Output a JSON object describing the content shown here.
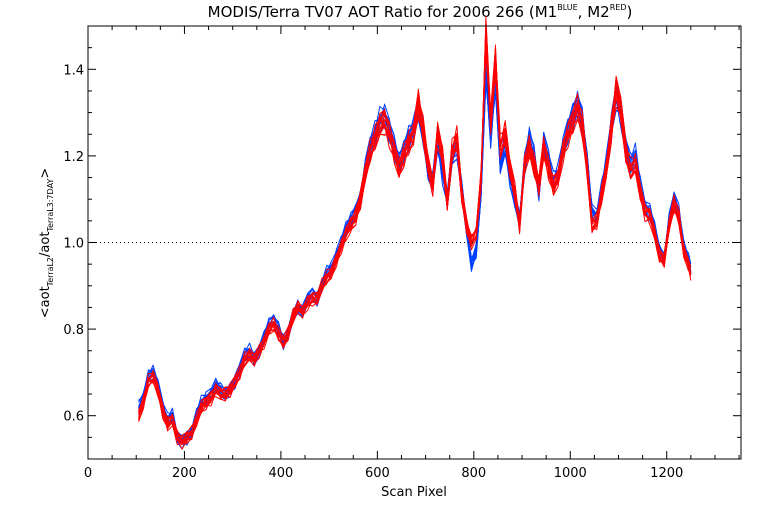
{
  "chart_data": {
    "type": "line",
    "title": {
      "main": "MODIS/Terra TV07 AOT Ratio for 2006 266 (M1",
      "sup1": "BLUE",
      "mid": ", M2",
      "sup2": "RED",
      "end": ")"
    },
    "xlabel": "Scan Pixel",
    "ylabel": {
      "open": "<aot",
      "sub1": "TerraL2",
      "mid": "/aot",
      "sub2": "TerraL3:7DAY",
      "close": ">"
    },
    "xlim": [
      0,
      1354
    ],
    "ylim": [
      0.5,
      1.5
    ],
    "x_ticks": [
      0,
      200,
      400,
      600,
      800,
      1000,
      1200
    ],
    "x_tick_labels": [
      "0",
      "200",
      "400",
      "600",
      "800",
      "1000",
      "1200"
    ],
    "y_ticks": [
      0.6,
      0.8,
      1.0,
      1.2,
      1.4
    ],
    "y_tick_labels": [
      "0.6",
      "0.8",
      "1.0",
      "1.2",
      "1.4"
    ],
    "reference_line": {
      "y": 1.0,
      "style": "dotted"
    },
    "grid": false,
    "series": [
      {
        "color": "#0040ff",
        "member_lines": 20,
        "x": [
          105,
          115,
          125,
          135,
          145,
          155,
          165,
          175,
          185,
          195,
          205,
          215,
          225,
          235,
          245,
          255,
          265,
          275,
          285,
          295,
          305,
          315,
          325,
          335,
          345,
          355,
          365,
          375,
          385,
          395,
          405,
          415,
          425,
          435,
          445,
          455,
          465,
          475,
          485,
          495,
          505,
          515,
          525,
          535,
          545,
          555,
          565,
          575,
          585,
          595,
          605,
          615,
          625,
          635,
          645,
          655,
          665,
          675,
          685,
          695,
          705,
          715,
          725,
          735,
          745,
          755,
          765,
          775,
          785,
          795,
          805,
          815,
          825,
          835,
          845,
          855,
          865,
          875,
          885,
          895,
          905,
          915,
          925,
          935,
          945,
          955,
          965,
          975,
          985,
          995,
          1005,
          1015,
          1025,
          1035,
          1045,
          1055,
          1065,
          1075,
          1085,
          1095,
          1105,
          1115,
          1125,
          1135,
          1145,
          1155,
          1165,
          1175,
          1185,
          1195,
          1205,
          1215,
          1225,
          1235,
          1245,
          1250
        ],
        "values": [
          0.62,
          0.64,
          0.69,
          0.7,
          0.67,
          0.62,
          0.59,
          0.6,
          0.55,
          0.54,
          0.55,
          0.56,
          0.6,
          0.63,
          0.64,
          0.65,
          0.67,
          0.66,
          0.65,
          0.66,
          0.68,
          0.71,
          0.74,
          0.75,
          0.73,
          0.75,
          0.78,
          0.81,
          0.82,
          0.8,
          0.77,
          0.79,
          0.83,
          0.85,
          0.84,
          0.87,
          0.88,
          0.87,
          0.9,
          0.93,
          0.94,
          0.97,
          1.0,
          1.03,
          1.05,
          1.07,
          1.1,
          1.17,
          1.22,
          1.25,
          1.28,
          1.29,
          1.26,
          1.22,
          1.18,
          1.21,
          1.24,
          1.26,
          1.31,
          1.25,
          1.17,
          1.14,
          1.24,
          1.16,
          1.1,
          1.2,
          1.22,
          1.12,
          1.03,
          0.95,
          0.98,
          1.12,
          1.4,
          1.25,
          1.38,
          1.18,
          1.23,
          1.15,
          1.1,
          1.05,
          1.18,
          1.24,
          1.2,
          1.12,
          1.23,
          1.19,
          1.14,
          1.16,
          1.22,
          1.26,
          1.29,
          1.32,
          1.28,
          1.18,
          1.07,
          1.06,
          1.12,
          1.18,
          1.27,
          1.34,
          1.3,
          1.22,
          1.18,
          1.2,
          1.13,
          1.08,
          1.07,
          1.03,
          0.98,
          0.96,
          1.05,
          1.1,
          1.07,
          0.99,
          0.96,
          0.94
        ]
      },
      {
        "color": "#ff0000",
        "member_lines": 20,
        "x": [
          105,
          115,
          125,
          135,
          145,
          155,
          165,
          175,
          185,
          195,
          205,
          215,
          225,
          235,
          245,
          255,
          265,
          275,
          285,
          295,
          305,
          315,
          325,
          335,
          345,
          355,
          365,
          375,
          385,
          395,
          405,
          415,
          425,
          435,
          445,
          455,
          465,
          475,
          485,
          495,
          505,
          515,
          525,
          535,
          545,
          555,
          565,
          575,
          585,
          595,
          605,
          615,
          625,
          635,
          645,
          655,
          665,
          675,
          685,
          695,
          705,
          715,
          725,
          735,
          745,
          755,
          765,
          775,
          785,
          795,
          805,
          815,
          825,
          835,
          845,
          855,
          865,
          875,
          885,
          895,
          905,
          915,
          925,
          935,
          945,
          955,
          965,
          975,
          985,
          995,
          1005,
          1015,
          1025,
          1035,
          1045,
          1055,
          1065,
          1075,
          1085,
          1095,
          1105,
          1115,
          1125,
          1135,
          1145,
          1155,
          1165,
          1175,
          1185,
          1195,
          1205,
          1215,
          1225,
          1235,
          1245,
          1250
        ],
        "values": [
          0.6,
          0.63,
          0.68,
          0.69,
          0.66,
          0.61,
          0.58,
          0.59,
          0.55,
          0.54,
          0.55,
          0.56,
          0.59,
          0.62,
          0.63,
          0.64,
          0.66,
          0.65,
          0.65,
          0.66,
          0.68,
          0.7,
          0.73,
          0.74,
          0.73,
          0.75,
          0.77,
          0.8,
          0.81,
          0.79,
          0.77,
          0.79,
          0.83,
          0.85,
          0.84,
          0.86,
          0.87,
          0.87,
          0.9,
          0.92,
          0.93,
          0.96,
          0.99,
          1.02,
          1.04,
          1.06,
          1.1,
          1.16,
          1.21,
          1.24,
          1.27,
          1.28,
          1.25,
          1.21,
          1.17,
          1.2,
          1.23,
          1.25,
          1.32,
          1.26,
          1.18,
          1.13,
          1.25,
          1.2,
          1.09,
          1.21,
          1.24,
          1.11,
          1.04,
          1.0,
          1.02,
          1.15,
          1.48,
          1.28,
          1.42,
          1.22,
          1.25,
          1.17,
          1.12,
          1.04,
          1.18,
          1.22,
          1.18,
          1.13,
          1.22,
          1.17,
          1.13,
          1.15,
          1.21,
          1.25,
          1.28,
          1.31,
          1.27,
          1.17,
          1.04,
          1.05,
          1.11,
          1.17,
          1.26,
          1.35,
          1.31,
          1.21,
          1.17,
          1.18,
          1.12,
          1.07,
          1.06,
          1.02,
          0.97,
          0.96,
          1.04,
          1.09,
          1.06,
          0.98,
          0.95,
          0.93
        ]
      }
    ]
  }
}
